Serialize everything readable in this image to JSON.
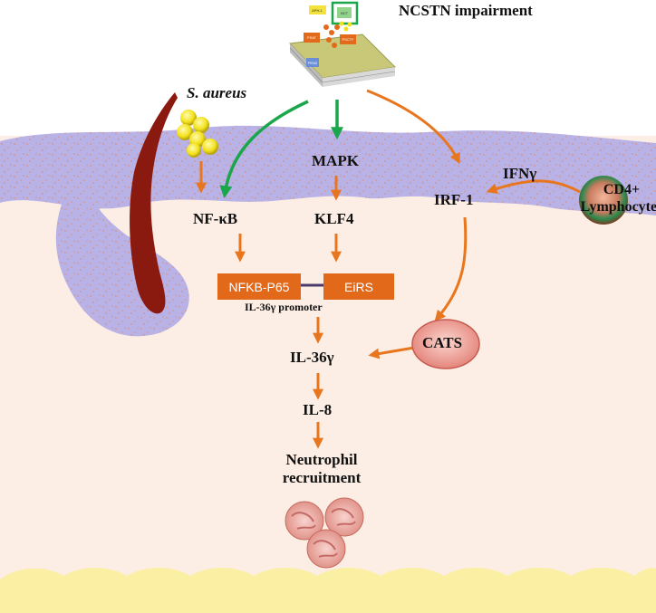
{
  "title": "NCSTN impairment",
  "bacteria_label": "S. aureus",
  "cell_label_lines": [
    "CD4+",
    "Lymphocytes"
  ],
  "nodes": {
    "mapk": "MAPK",
    "nfkb": "NF-κB",
    "klf4": "KLF4",
    "irf1": "IRF-1",
    "ifng": "IFNγ",
    "cats": "CATS",
    "il36g": "IL-36γ",
    "il8": "IL-8",
    "neutrophil_lines": [
      "Neutrophil",
      "recruitment"
    ]
  },
  "boxes": {
    "nfkb_p65": "NFKB-P65",
    "eirs": "EiRS"
  },
  "promoter_label": "IL-36γ promoter",
  "complex_labels": [
    "APH-1",
    "NCT",
    "PSAT",
    "PSCTF",
    "PEN2"
  ],
  "colors": {
    "arrow_orange": "#E8761E",
    "arrow_green": "#1AA64B",
    "box_orange": "#E2691A",
    "epidermis": "#B9B2E6",
    "dermis": "#FCEEE4",
    "hair": "#8A1A10",
    "bacteria": "#F3E11A",
    "subcutis": "#FBEFA3"
  }
}
